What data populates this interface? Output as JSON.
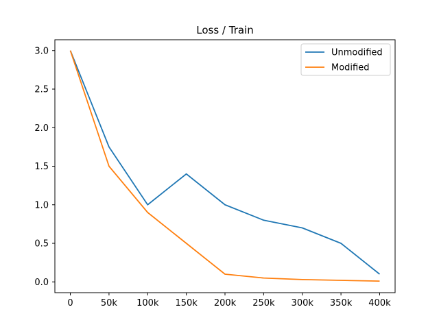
{
  "chart_data": {
    "type": "line",
    "title": "Loss / Train",
    "xlabel": "",
    "ylabel": "",
    "x": [
      0,
      50000,
      100000,
      150000,
      200000,
      250000,
      300000,
      350000,
      400000
    ],
    "x_tick_labels": [
      "0",
      "50k",
      "100k",
      "150k",
      "200k",
      "250k",
      "300k",
      "350k",
      "400k"
    ],
    "y_ticks": [
      0.0,
      0.5,
      1.0,
      1.5,
      2.0,
      2.5,
      3.0
    ],
    "y_tick_labels": [
      "0.0",
      "0.5",
      "1.0",
      "1.5",
      "2.0",
      "2.5",
      "3.0"
    ],
    "xlim": [
      -20000,
      420000
    ],
    "ylim": [
      -0.14,
      3.14
    ],
    "grid": false,
    "legend_position": "top-right",
    "series": [
      {
        "name": "Unmodified",
        "color": "#1f77b4",
        "values": [
          3.0,
          1.75,
          1.0,
          1.4,
          1.0,
          0.8,
          0.7,
          0.5,
          0.1
        ]
      },
      {
        "name": "Modified",
        "color": "#ff7f0e",
        "values": [
          3.0,
          1.5,
          0.9,
          0.5,
          0.1,
          0.05,
          0.03,
          0.02,
          0.01
        ]
      }
    ]
  }
}
